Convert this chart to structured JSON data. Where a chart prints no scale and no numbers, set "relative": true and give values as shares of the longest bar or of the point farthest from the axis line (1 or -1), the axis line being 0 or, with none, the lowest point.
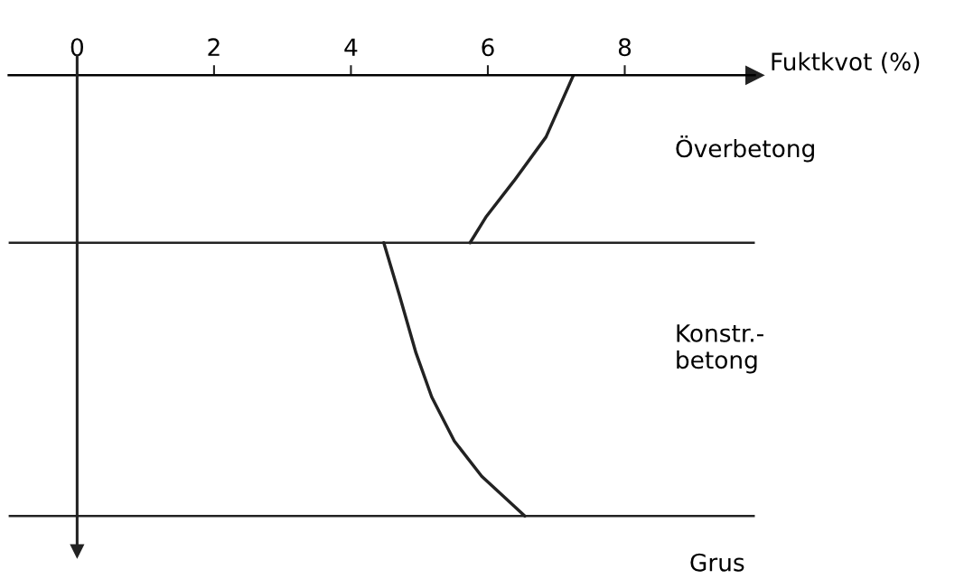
{
  "chart_data": {
    "type": "line",
    "xlabel": "Fuktkvot (%)",
    "relative": true,
    "xlim": [
      -1,
      9.9
    ],
    "xticks": [
      0,
      2,
      4,
      6,
      8
    ],
    "tick_labels": "x",
    "grid": false,
    "legend": false,
    "series": [
      {
        "color": "#222222",
        "x": [
          7.25,
          6.85,
          6.38,
          5.98,
          5.74
        ],
        "values": [
          0,
          -0.14,
          -0.24,
          -0.32,
          -0.38
        ]
      },
      {
        "color": "#222222",
        "x": [
          4.48,
          4.71,
          4.95,
          5.18,
          5.51,
          5.91,
          6.54
        ],
        "values": [
          -0.38,
          -0.5,
          -0.63,
          -0.73,
          -0.83,
          -0.91,
          -1.0
        ]
      }
    ],
    "ref_lines": [
      {
        "axis": "x",
        "value": 0,
        "color": "#222222"
      },
      {
        "axis": "y",
        "value": -0.38,
        "color": "#222222"
      },
      {
        "axis": "y",
        "value": -1.0,
        "color": "#222222"
      }
    ],
    "annotations": [
      "Överbetong",
      "Konstr.-\nbetong",
      "Grus"
    ]
  }
}
